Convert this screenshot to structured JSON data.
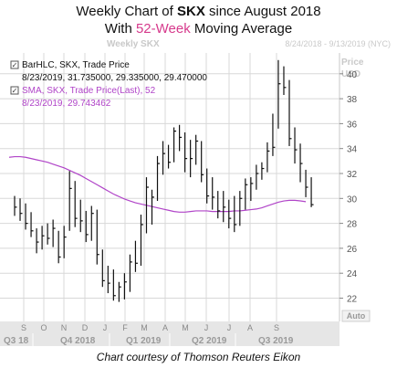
{
  "title": {
    "line1_prefix": "Weekly Chart of ",
    "line1_ticker": "SKX",
    "line1_suffix": " since August 2018",
    "line2_prefix": "With ",
    "line2_accent": "52-Week",
    "line2_suffix": " Moving Average"
  },
  "chart_header": {
    "symbol_label": "Weekly SKX",
    "date_range": "8/24/2018 - 9/13/2019 (NYC)",
    "price_label": "Price",
    "currency_label": "USD",
    "auto_button": "Auto"
  },
  "legend": {
    "bar_title": "BarHLC, SKX, Trade Price",
    "bar_values": "8/23/2019, 31.735000, 29.335000, 29.470000",
    "sma_title": "SMA, SKX, Trade Price(Last),  52",
    "sma_values": "8/23/2019, 29.743462"
  },
  "colors": {
    "bars": "#111111",
    "sma": "#b044c8",
    "grid": "#d8d8d8",
    "axis_band": "#e6e6e6",
    "accent": "#d63a8c",
    "check_box": "#555555"
  },
  "caption": "Chart courtesy of Thomson Reuters Eikon",
  "chart_data": {
    "type": "bar",
    "subtype": "HLC bars with 52-week SMA line",
    "y_axis_side": "right",
    "ylim": [
      21,
      42
    ],
    "y_ticks": [
      22,
      24,
      26,
      28,
      30,
      32,
      34,
      36,
      38,
      40
    ],
    "month_labels": [
      "S",
      "O",
      "N",
      "D",
      "J",
      "F",
      "M",
      "A",
      "M",
      "J",
      "J",
      "A",
      "S"
    ],
    "quarter_labels": [
      "Q3 18",
      "Q4 2018",
      "Q1 2019",
      "Q2 2019",
      "Q3 2019"
    ],
    "grid": true,
    "series": [
      {
        "name": "BarHLC, SKX, Trade Price",
        "type": "hlc",
        "bars": [
          [
            30.2,
            28.6,
            29.3
          ],
          [
            30.0,
            28.2,
            28.8
          ],
          [
            29.6,
            27.5,
            28.0
          ],
          [
            28.9,
            26.9,
            27.4
          ],
          [
            27.6,
            25.6,
            26.5
          ],
          [
            27.8,
            25.9,
            27.0
          ],
          [
            28.0,
            26.3,
            26.8
          ],
          [
            28.3,
            26.1,
            27.6
          ],
          [
            27.4,
            24.8,
            25.3
          ],
          [
            27.8,
            25.2,
            26.9
          ],
          [
            32.2,
            27.4,
            30.8
          ],
          [
            31.4,
            27.7,
            28.4
          ],
          [
            29.9,
            27.3,
            28.2
          ],
          [
            29.0,
            26.5,
            27.1
          ],
          [
            29.4,
            26.6,
            28.8
          ],
          [
            29.1,
            24.7,
            25.5
          ],
          [
            25.9,
            22.9,
            23.4
          ],
          [
            24.6,
            22.4,
            23.2
          ],
          [
            24.3,
            21.8,
            22.2
          ],
          [
            23.3,
            21.7,
            22.9
          ],
          [
            24.0,
            21.9,
            23.3
          ],
          [
            25.5,
            22.5,
            24.9
          ],
          [
            26.6,
            24.1,
            24.8
          ],
          [
            28.7,
            24.6,
            27.9
          ],
          [
            31.7,
            27.2,
            30.9
          ],
          [
            30.7,
            27.9,
            30.1
          ],
          [
            33.4,
            29.8,
            32.8
          ],
          [
            34.6,
            31.9,
            33.6
          ],
          [
            34.3,
            32.4,
            32.9
          ],
          [
            35.7,
            32.9,
            35.4
          ],
          [
            35.9,
            33.8,
            34.9
          ],
          [
            35.3,
            32.1,
            33.2
          ],
          [
            34.7,
            31.7,
            33.2
          ],
          [
            35.1,
            32.7,
            34.6
          ],
          [
            34.6,
            31.3,
            31.9
          ],
          [
            32.4,
            29.6,
            30.2
          ],
          [
            31.7,
            29.1,
            30.1
          ],
          [
            30.6,
            28.4,
            29.0
          ],
          [
            30.6,
            28.1,
            29.3
          ],
          [
            29.9,
            27.6,
            28.4
          ],
          [
            30.2,
            27.3,
            27.9
          ],
          [
            30.6,
            27.8,
            30.0
          ],
          [
            31.6,
            29.1,
            31.1
          ],
          [
            31.7,
            29.8,
            31.2
          ],
          [
            32.7,
            30.7,
            32.0
          ],
          [
            32.9,
            31.5,
            32.4
          ],
          [
            34.5,
            32.1,
            33.8
          ],
          [
            36.8,
            33.4,
            34.1
          ],
          [
            41.1,
            35.6,
            39.2
          ],
          [
            40.6,
            38.3,
            38.9
          ],
          [
            39.5,
            34.2,
            34.8
          ],
          [
            35.7,
            32.8,
            33.9
          ],
          [
            34.4,
            31.3,
            32.8
          ],
          [
            32.3,
            30.1,
            30.9
          ],
          [
            31.7,
            29.3,
            29.5
          ]
        ]
      },
      {
        "name": "SMA, SKX, Trade Price(Last),  52",
        "type": "line",
        "values": [
          33.3,
          33.35,
          33.35,
          33.3,
          33.2,
          33.1,
          33.0,
          32.9,
          32.75,
          32.6,
          32.45,
          32.25,
          32.05,
          31.85,
          31.6,
          31.35,
          31.1,
          30.85,
          30.6,
          30.35,
          30.15,
          29.95,
          29.8,
          29.65,
          29.55,
          29.45,
          29.35,
          29.25,
          29.15,
          29.05,
          28.95,
          28.9,
          28.9,
          28.95,
          29.0,
          29.0,
          29.0,
          28.95,
          28.95,
          28.95,
          28.95,
          29.0,
          29.0,
          29.05,
          29.1,
          29.15,
          29.25,
          29.4,
          29.55,
          29.7,
          29.8,
          29.85,
          29.85,
          29.8,
          29.74
        ]
      }
    ]
  }
}
